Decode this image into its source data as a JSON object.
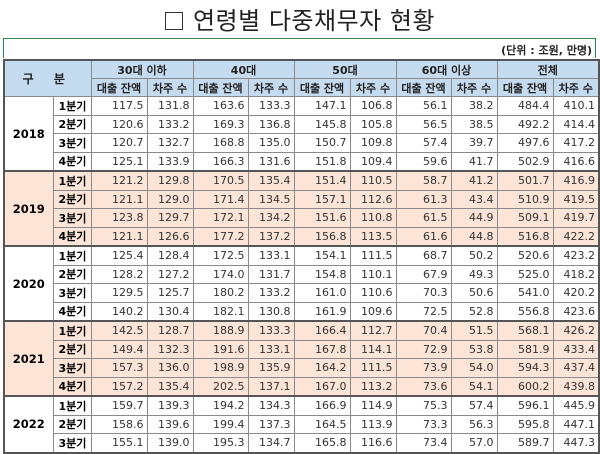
{
  "title": "연령별 다중채무자 현황",
  "unit": "(단위 : 조원, 만명)",
  "header": {
    "gubun": "구 분",
    "groups": [
      "30대 이하",
      "40대",
      "50대",
      "60대 이상",
      "전체"
    ],
    "sub": [
      "대출 잔액",
      "차주 수"
    ]
  },
  "years": [
    {
      "year": "2018",
      "alt": false,
      "rows": [
        {
          "q": "1분기",
          "v": [
            "117.5",
            "131.8",
            "163.6",
            "133.3",
            "147.1",
            "106.8",
            "56.1",
            "38.2",
            "484.4",
            "410.1"
          ]
        },
        {
          "q": "2분기",
          "v": [
            "120.6",
            "133.2",
            "169.3",
            "136.8",
            "145.8",
            "105.8",
            "56.5",
            "38.5",
            "492.2",
            "414.4"
          ]
        },
        {
          "q": "3분기",
          "v": [
            "120.7",
            "132.7",
            "168.8",
            "135.0",
            "150.7",
            "109.8",
            "57.4",
            "39.7",
            "497.6",
            "417.2"
          ]
        },
        {
          "q": "4분기",
          "v": [
            "125.1",
            "133.9",
            "166.3",
            "131.6",
            "151.8",
            "109.4",
            "59.6",
            "41.7",
            "502.9",
            "416.6"
          ]
        }
      ]
    },
    {
      "year": "2019",
      "alt": true,
      "rows": [
        {
          "q": "1분기",
          "v": [
            "121.2",
            "129.8",
            "170.5",
            "135.4",
            "151.4",
            "110.5",
            "58.7",
            "41.2",
            "501.7",
            "416.9"
          ]
        },
        {
          "q": "2분기",
          "v": [
            "121.1",
            "129.0",
            "171.4",
            "134.5",
            "157.1",
            "112.6",
            "61.3",
            "43.4",
            "510.9",
            "419.5"
          ]
        },
        {
          "q": "3분기",
          "v": [
            "123.8",
            "129.7",
            "172.1",
            "134.2",
            "151.6",
            "110.8",
            "61.5",
            "44.9",
            "509.1",
            "419.7"
          ]
        },
        {
          "q": "4분기",
          "v": [
            "121.1",
            "126.6",
            "177.2",
            "137.2",
            "156.8",
            "113.5",
            "61.6",
            "44.8",
            "516.8",
            "422.2"
          ]
        }
      ]
    },
    {
      "year": "2020",
      "alt": false,
      "rows": [
        {
          "q": "1분기",
          "v": [
            "125.4",
            "128.4",
            "172.5",
            "133.1",
            "154.1",
            "111.5",
            "68.7",
            "50.2",
            "520.6",
            "423.2"
          ]
        },
        {
          "q": "2분기",
          "v": [
            "128.2",
            "127.2",
            "174.0",
            "131.7",
            "154.8",
            "110.1",
            "67.9",
            "49.3",
            "525.0",
            "418.2"
          ]
        },
        {
          "q": "3분기",
          "v": [
            "129.5",
            "125.7",
            "180.2",
            "133.2",
            "161.0",
            "110.6",
            "70.3",
            "50.6",
            "541.0",
            "420.2"
          ]
        },
        {
          "q": "4분기",
          "v": [
            "140.2",
            "130.4",
            "182.1",
            "130.8",
            "161.9",
            "109.6",
            "72.5",
            "52.8",
            "556.8",
            "423.6"
          ]
        }
      ]
    },
    {
      "year": "2021",
      "alt": true,
      "rows": [
        {
          "q": "1분기",
          "v": [
            "142.5",
            "128.7",
            "188.9",
            "133.3",
            "166.4",
            "112.7",
            "70.4",
            "51.5",
            "568.1",
            "426.2"
          ]
        },
        {
          "q": "2분기",
          "v": [
            "149.4",
            "132.3",
            "191.6",
            "133.1",
            "167.8",
            "114.1",
            "72.9",
            "53.8",
            "581.9",
            "433.4"
          ]
        },
        {
          "q": "3분기",
          "v": [
            "157.3",
            "136.0",
            "198.9",
            "135.9",
            "164.2",
            "111.5",
            "73.9",
            "54.0",
            "594.3",
            "437.4"
          ]
        },
        {
          "q": "4분기",
          "v": [
            "157.2",
            "135.4",
            "202.5",
            "137.1",
            "167.0",
            "113.2",
            "73.6",
            "54.1",
            "600.2",
            "439.8"
          ]
        }
      ]
    },
    {
      "year": "2022",
      "alt": false,
      "rows": [
        {
          "q": "1분기",
          "v": [
            "159.7",
            "139.3",
            "194.2",
            "134.3",
            "166.9",
            "114.9",
            "75.3",
            "57.4",
            "596.1",
            "445.9"
          ]
        },
        {
          "q": "2분기",
          "v": [
            "158.6",
            "139.6",
            "199.4",
            "137.3",
            "164.5",
            "113.9",
            "73.3",
            "56.3",
            "595.8",
            "447.1"
          ]
        },
        {
          "q": "3분기",
          "v": [
            "155.1",
            "139.0",
            "195.3",
            "134.7",
            "165.8",
            "116.6",
            "73.4",
            "57.0",
            "589.7",
            "447.3"
          ]
        }
      ]
    }
  ]
}
